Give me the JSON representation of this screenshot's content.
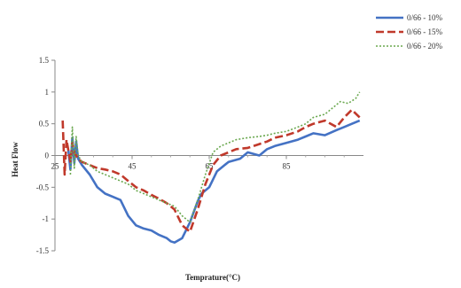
{
  "chart_data": {
    "type": "line",
    "xlabel": "Temprature(°C)",
    "ylabel": "Heat Flow",
    "xlim": [
      25,
      105
    ],
    "ylim": [
      -1.5,
      1.5
    ],
    "x_ticks": [
      25,
      45,
      65,
      85
    ],
    "x_tick_labels": [
      "25",
      "45",
      "65",
      "85"
    ],
    "y_ticks": [
      1.5,
      1,
      0.5,
      0,
      -0.5,
      -1,
      -1.5
    ],
    "y_tick_labels": [
      "1.5",
      "1",
      "0.5",
      "0",
      "-0.5",
      "-1",
      "-1.5"
    ],
    "grid": false,
    "legend_position": "top-right",
    "series": [
      {
        "name": "0/66 - 10%",
        "color": "#4472C4",
        "dash": "solid",
        "x": [
          28.5,
          29.0,
          29.5,
          30.0,
          30.5,
          31.0,
          32,
          34,
          36,
          38,
          40,
          42,
          44,
          46,
          48,
          50,
          52,
          54,
          55,
          56,
          58,
          60,
          62,
          63,
          64,
          65,
          67,
          70,
          73,
          75,
          78,
          80,
          82,
          85,
          88,
          90,
          92,
          95,
          98,
          100,
          102,
          104
        ],
        "y": [
          0.08,
          -0.22,
          0.28,
          -0.12,
          0.22,
          -0.05,
          -0.15,
          -0.3,
          -0.5,
          -0.6,
          -0.65,
          -0.7,
          -0.95,
          -1.1,
          -1.15,
          -1.18,
          -1.25,
          -1.3,
          -1.35,
          -1.37,
          -1.3,
          -1.05,
          -0.72,
          -0.6,
          -0.55,
          -0.5,
          -0.25,
          -0.1,
          -0.05,
          0.05,
          0.0,
          0.1,
          0.15,
          0.2,
          0.25,
          0.3,
          0.35,
          0.32,
          0.4,
          0.45,
          0.5,
          0.55
        ]
      },
      {
        "name": "0/66 - 15%",
        "color": "#C0392B",
        "dash": "dashed",
        "x": [
          27.0,
          27.5,
          28.0,
          29.0,
          29.5,
          30.0,
          31.0,
          32,
          34,
          36,
          38,
          40,
          42,
          44,
          46,
          48,
          50,
          52,
          54,
          56,
          58,
          60,
          62,
          64,
          66,
          68,
          70,
          72,
          75,
          78,
          80,
          82,
          85,
          88,
          90,
          92,
          95,
          98,
          100,
          102,
          104
        ],
        "y": [
          0.55,
          -0.3,
          0.25,
          -0.1,
          0.2,
          0.05,
          -0.05,
          -0.1,
          -0.15,
          -0.2,
          -0.22,
          -0.25,
          -0.3,
          -0.4,
          -0.5,
          -0.55,
          -0.62,
          -0.68,
          -0.75,
          -0.85,
          -1.1,
          -1.2,
          -0.85,
          -0.45,
          -0.15,
          0.0,
          0.05,
          0.1,
          0.12,
          0.18,
          0.22,
          0.28,
          0.32,
          0.38,
          0.45,
          0.5,
          0.55,
          0.45,
          0.6,
          0.72,
          0.6
        ]
      },
      {
        "name": "0/66 - 20%",
        "color": "#6AA84F",
        "dash": "dotted",
        "x": [
          29.0,
          29.5,
          30.0,
          30.5,
          31.0,
          32,
          34,
          36,
          38,
          40,
          42,
          44,
          46,
          48,
          50,
          52,
          54,
          56,
          58,
          60,
          62,
          64,
          66,
          68,
          70,
          72,
          75,
          78,
          80,
          82,
          85,
          88,
          90,
          92,
          95,
          97,
          99,
          101,
          103,
          104
        ],
        "y": [
          -0.3,
          0.45,
          -0.2,
          0.3,
          0.0,
          -0.1,
          -0.15,
          -0.25,
          -0.3,
          -0.35,
          -0.4,
          -0.45,
          -0.55,
          -0.6,
          -0.65,
          -0.7,
          -0.75,
          -0.8,
          -0.95,
          -1.05,
          -0.7,
          -0.3,
          0.05,
          0.15,
          0.2,
          0.25,
          0.28,
          0.3,
          0.32,
          0.35,
          0.38,
          0.45,
          0.5,
          0.6,
          0.65,
          0.75,
          0.85,
          0.82,
          0.9,
          1.0
        ]
      }
    ]
  }
}
